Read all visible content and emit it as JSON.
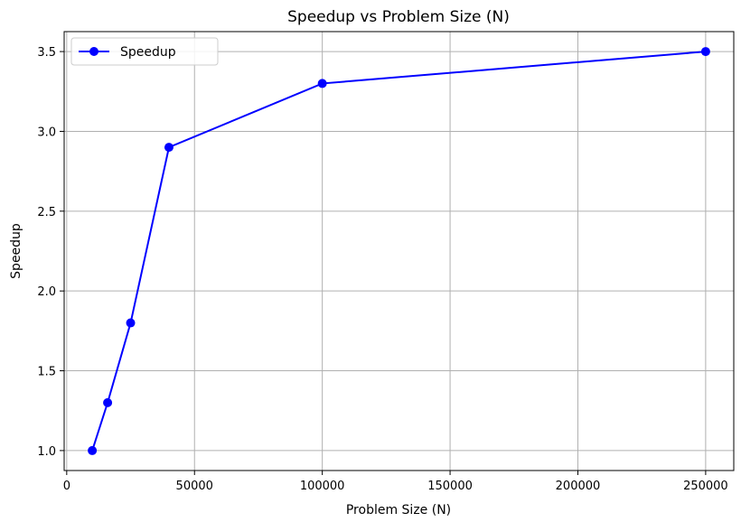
{
  "chart_data": {
    "type": "line",
    "title": "Speedup vs Problem Size (N)",
    "xlabel": "Problem Size (N)",
    "ylabel": "Speedup",
    "xlim": [
      -1000,
      261000
    ],
    "ylim": [
      0.875,
      3.625
    ],
    "x_ticks": [
      0,
      50000,
      100000,
      150000,
      200000,
      250000
    ],
    "x_tick_labels": [
      "0",
      "50000",
      "100000",
      "150000",
      "200000",
      "250000"
    ],
    "y_ticks": [
      1.0,
      1.5,
      2.0,
      2.5,
      3.0,
      3.5
    ],
    "y_tick_labels": [
      "1.0",
      "1.5",
      "2.0",
      "2.5",
      "3.0",
      "3.5"
    ],
    "grid": true,
    "legend_position": "top-left",
    "series": [
      {
        "name": "Speedup",
        "color": "#0000ff",
        "marker": "circle",
        "x": [
          10000,
          16000,
          25000,
          40000,
          100000,
          250000
        ],
        "y": [
          1.0,
          1.3,
          1.8,
          2.9,
          3.3,
          3.5
        ]
      }
    ]
  }
}
